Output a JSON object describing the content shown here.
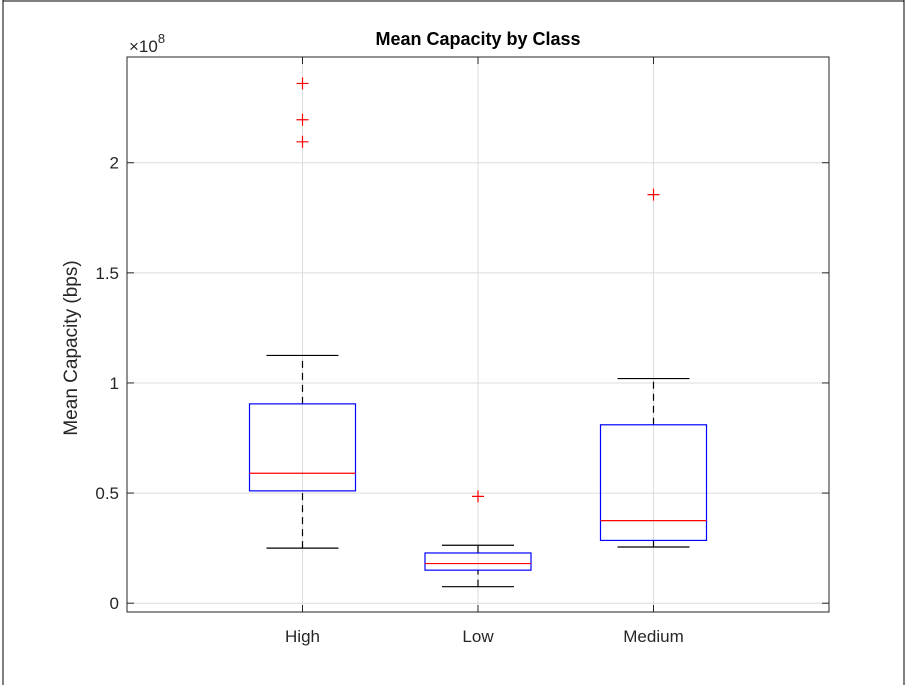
{
  "chart_data": {
    "type": "box",
    "title": "Mean Capacity by Class",
    "xlabel": "",
    "ylabel": "Mean Capacity (bps)",
    "y_multiplier_base": "×10",
    "y_multiplier_exponent": "8",
    "ylim": [
      -0.04,
      2.48
    ],
    "yticks": [
      0,
      0.5,
      1,
      1.5,
      2
    ],
    "ytick_labels": [
      "0",
      "0.5",
      "1",
      "1.5",
      "2"
    ],
    "grid": true,
    "categories": [
      "High",
      "Low",
      "Medium"
    ],
    "boxes": [
      {
        "category": "High",
        "whisker_low": 0.25,
        "q1": 0.51,
        "median": 0.59,
        "q3": 0.905,
        "whisker_high": 1.125,
        "outliers": [
          2.095,
          2.195,
          2.36
        ]
      },
      {
        "category": "Low",
        "whisker_low": 0.075,
        "q1": 0.15,
        "median": 0.18,
        "q3": 0.228,
        "whisker_high": 0.263,
        "outliers": [
          0.485
        ]
      },
      {
        "category": "Medium",
        "whisker_low": 0.255,
        "q1": 0.285,
        "median": 0.375,
        "q3": 0.81,
        "whisker_high": 1.02,
        "outliers": [
          1.855
        ]
      }
    ],
    "colors": {
      "box": "#0000ff",
      "median": "#ff0000",
      "outlier": "#ff0000",
      "whisker": "#000000",
      "grid": "#dcdcdc",
      "axis": "#262626"
    }
  }
}
